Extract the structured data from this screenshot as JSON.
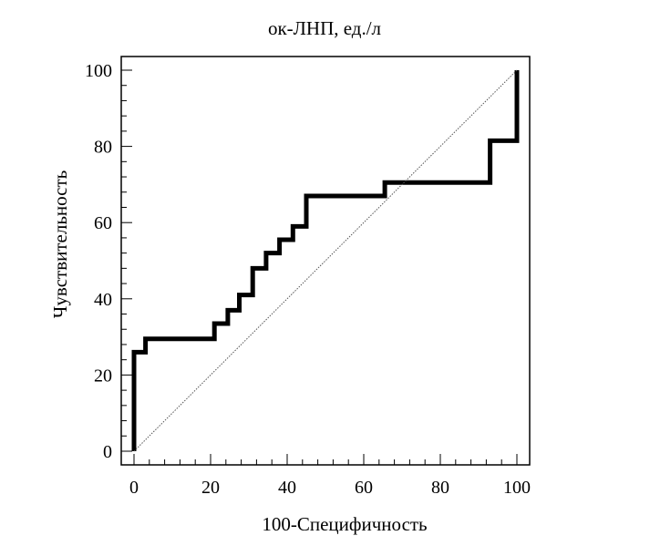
{
  "chart_data": {
    "type": "line",
    "title": "ок-ЛНП, ед./л",
    "xlabel": "100-Специфичность",
    "ylabel": "Чувствительность",
    "xlim": [
      0,
      100
    ],
    "ylim": [
      0,
      100
    ],
    "xticks": [
      0,
      20,
      40,
      60,
      80,
      100
    ],
    "yticks": [
      0,
      20,
      40,
      60,
      80,
      100
    ],
    "grid": false,
    "colors": {
      "roc_curve": "#000000",
      "reference_line": "#555555"
    },
    "series": [
      {
        "style": "step",
        "x": [
          0,
          0,
          3,
          3,
          21,
          21,
          24.5,
          24.5,
          27.5,
          27.5,
          31,
          31,
          34.5,
          34.5,
          38,
          38,
          41.5,
          41.5,
          45,
          45,
          65.5,
          65.5,
          93,
          93,
          100,
          100
        ],
        "y": [
          0,
          26,
          26,
          29.5,
          29.5,
          33.5,
          33.5,
          37,
          37,
          41,
          41,
          48,
          48,
          52,
          52,
          55.5,
          55.5,
          59,
          59,
          67,
          67,
          70.5,
          70.5,
          81.5,
          81.5,
          100
        ]
      },
      {
        "style": "diagonal",
        "x": [
          0,
          100
        ],
        "y": [
          0,
          100
        ]
      }
    ]
  }
}
